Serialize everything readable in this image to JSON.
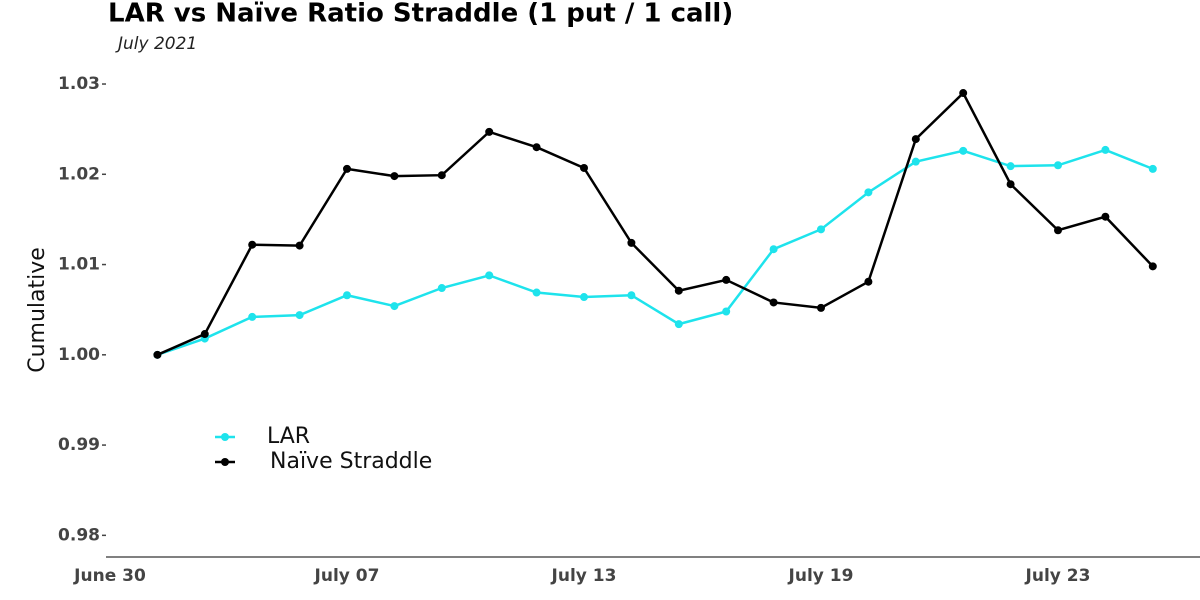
{
  "chart_data": {
    "type": "line",
    "title": "LAR vs Naïve Ratio Straddle (1 put / 1 call)",
    "subtitle": "July 2021",
    "y_label": "Cumulative",
    "categories": [
      "June 30",
      null,
      null,
      null,
      null,
      "July 07",
      null,
      null,
      null,
      null,
      "July 13",
      null,
      null,
      null,
      null,
      "July 19",
      null,
      null,
      null,
      null,
      "July 23",
      null,
      null
    ],
    "series": [
      {
        "name": "LAR",
        "color": "#1ee3ec",
        "values": [
          null,
          1.0,
          1.0018,
          1.0042,
          1.0044,
          1.0066,
          1.0054,
          1.0074,
          1.0088,
          1.0069,
          1.0064,
          1.0066,
          1.0034,
          1.0048,
          1.0117,
          1.0139,
          1.018,
          1.0214,
          1.0226,
          1.0209,
          1.021,
          1.0227,
          1.0206
        ]
      },
      {
        "name": "Naïve Straddle",
        "color": "#000000",
        "values": [
          null,
          1.0,
          1.0023,
          1.0122,
          1.0121,
          1.0206,
          1.0198,
          1.0199,
          1.0247,
          1.023,
          1.0207,
          1.0124,
          1.0071,
          1.0083,
          1.0058,
          1.0052,
          1.0081,
          1.0239,
          1.029,
          1.0189,
          1.0138,
          1.0153,
          1.0098
        ]
      }
    ],
    "ylim": [
      0.9776,
      1.031
    ],
    "yticks": [
      0.98,
      0.99,
      {
        "value": 1.0,
        "label": "1.00"
      },
      1.01,
      1.02,
      1.03
    ],
    "grid": false,
    "legend": "bottom-left"
  }
}
